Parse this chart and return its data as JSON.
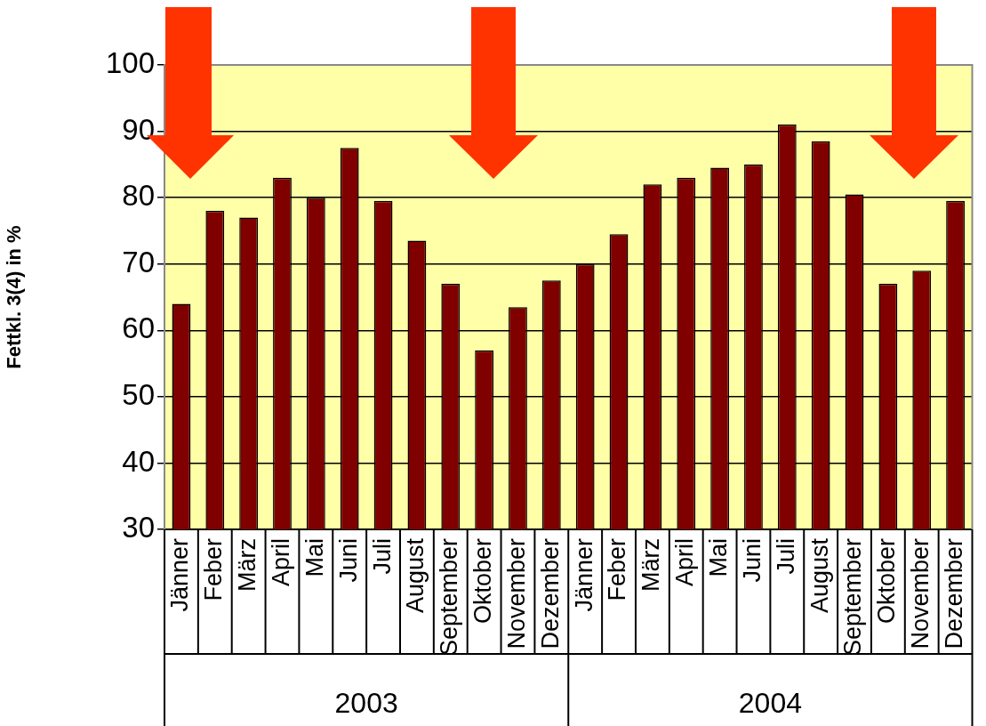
{
  "chart_data": {
    "type": "bar",
    "ylabel": "Fettkl. 3(4) in %",
    "categories": [
      "Jänner",
      "Feber",
      "März",
      "April",
      "Mai",
      "Juni",
      "Juli",
      "August",
      "September",
      "Oktober",
      "November",
      "Dezember",
      "Jänner",
      "Feber",
      "März",
      "April",
      "Mai",
      "Juni",
      "Juli",
      "August",
      "September",
      "Oktober",
      "November",
      "Dezember"
    ],
    "values": [
      64,
      78,
      77,
      83,
      80,
      87.5,
      79.5,
      73.5,
      67,
      57,
      63.5,
      67.5,
      70,
      74.5,
      82,
      83,
      84.5,
      85,
      91,
      88.5,
      80.5,
      67,
      69,
      79.5
    ],
    "color": "#800000",
    "ylim": [
      30,
      100
    ],
    "yticks": [
      30,
      40,
      50,
      60,
      70,
      80,
      90,
      100
    ],
    "grid": "y",
    "legend": false,
    "annotations": [
      "2003",
      "2004"
    ]
  }
}
